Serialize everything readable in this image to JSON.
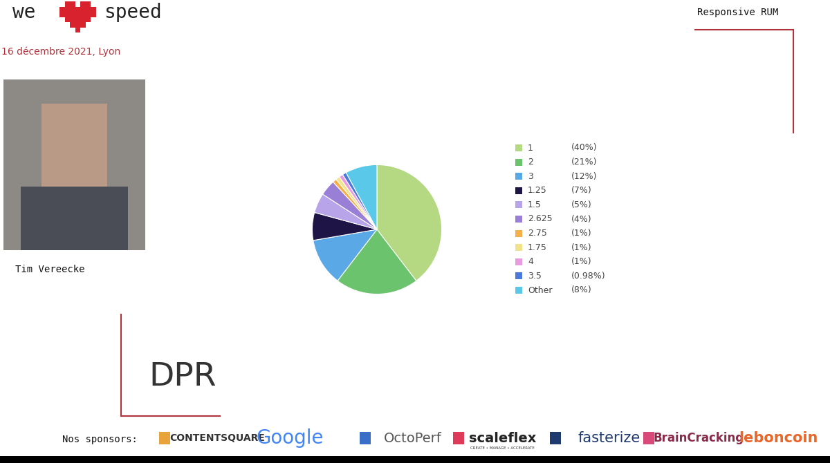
{
  "header": {
    "brand_left": "we",
    "brand_right": "speed",
    "date": "16 décembre 2021, Lyon",
    "section": "Responsive RUM"
  },
  "speaker": {
    "name": "Tim Vereecke"
  },
  "slide": {
    "title": "DPR"
  },
  "sponsors": {
    "label": "Nos sponsors:",
    "names": [
      "CONTENTSQUARE",
      "Google",
      "OctoPerf",
      "scaleflex",
      "fasterize",
      "BrainCracking",
      "leboncoin"
    ],
    "tagline": "CREATE • MANAGE • ACCELERATE"
  },
  "chart_data": {
    "type": "pie",
    "categories": [
      "1",
      "2",
      "3",
      "1.25",
      "1.5",
      "2.625",
      "2.75",
      "1.75",
      "4",
      "3.5",
      "Other"
    ],
    "values": [
      40,
      21,
      12,
      7,
      5,
      4,
      1,
      1,
      1,
      0.98,
      8
    ],
    "value_labels": [
      "(40%)",
      "(21%)",
      "(12%)",
      "(7%)",
      "(5%)",
      "(4%)",
      "(1%)",
      "(1%)",
      "(1%)",
      "(0.98%)",
      "(8%)"
    ],
    "colors": [
      "#b5d982",
      "#6cc36e",
      "#5aa9e6",
      "#1f1446",
      "#b8a4e8",
      "#9a7fd6",
      "#f5b04a",
      "#f1e38a",
      "#e99be0",
      "#4a78dc",
      "#5ac8e8"
    ]
  }
}
